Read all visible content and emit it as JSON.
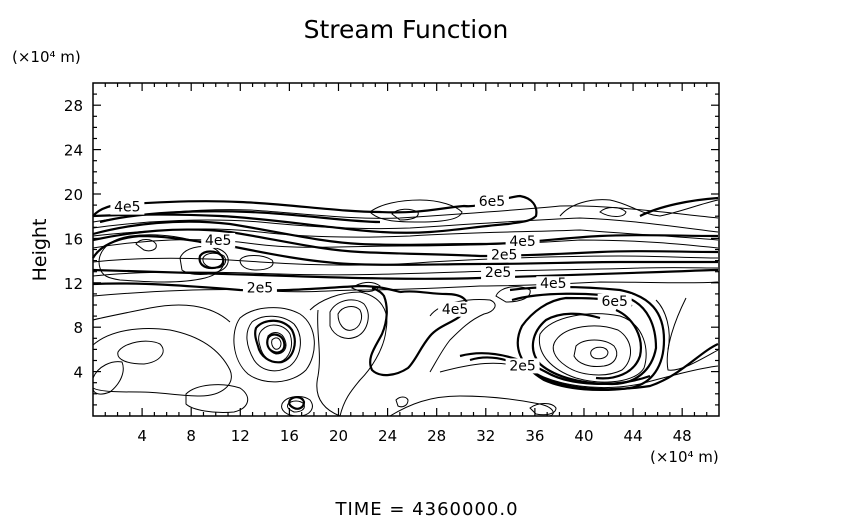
{
  "chart_data": {
    "type": "contour",
    "title": "Stream Function",
    "xlabel": "",
    "ylabel": "Height",
    "x_unit": "(×10⁴ m)",
    "y_unit": "(×10⁴ m)",
    "xlim": [
      0,
      51
    ],
    "ylim": [
      0,
      30
    ],
    "x_ticks": [
      4,
      8,
      12,
      16,
      20,
      24,
      28,
      32,
      36,
      40,
      44,
      48
    ],
    "y_ticks": [
      4,
      8,
      12,
      16,
      20,
      24,
      28
    ],
    "contour_labels": [
      {
        "text": "4e5",
        "x": 2.8,
        "y": 18.5
      },
      {
        "text": "4e5",
        "x": 10.2,
        "y": 15.5
      },
      {
        "text": "2e5",
        "x": 13.6,
        "y": 11.2
      },
      {
        "text": "6e5",
        "x": 32.5,
        "y": 19.0
      },
      {
        "text": "4e5",
        "x": 35.0,
        "y": 15.4
      },
      {
        "text": "2e5",
        "x": 33.5,
        "y": 14.2
      },
      {
        "text": "2e5",
        "x": 33.0,
        "y": 12.6
      },
      {
        "text": "4e5",
        "x": 37.5,
        "y": 11.6
      },
      {
        "text": "4e5",
        "x": 29.5,
        "y": 9.3
      },
      {
        "text": "6e5",
        "x": 42.5,
        "y": 10.0
      },
      {
        "text": "2e5",
        "x": 35.0,
        "y": 4.2
      }
    ],
    "footer": "TIME  =  4360000.0"
  }
}
